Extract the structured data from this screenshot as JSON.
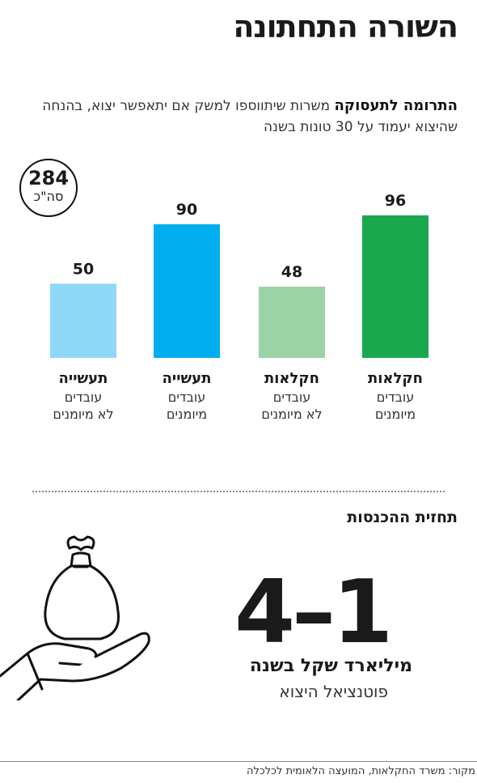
{
  "header": {
    "title": "השורה התחתונה",
    "subtitle_bold": "התרומה לתעסוקה",
    "subtitle_text": "משרות שיתווספו למשק אם יתאפשר יצוא, בהנחה שהיצוא יעמוד על 30 טונות בשנה"
  },
  "total": {
    "value": "284",
    "unit": "סה\"כ"
  },
  "chart_data": {
    "type": "bar",
    "categories": [
      "חקלאות עובדים מיומנים",
      "חקלאות עובדים לא מיומנים",
      "תעשייה עובדים מיומנים",
      "תעשייה עובדים לא מיומנים"
    ],
    "values": [
      96,
      48,
      90,
      50
    ],
    "ylim": [
      0,
      96
    ],
    "bars": [
      {
        "main": "חקלאות",
        "sub1": "עובדים",
        "sub2": "מיומנים",
        "value": 96,
        "label": "96",
        "color": "#1aa84f"
      },
      {
        "main": "חקלאות",
        "sub1": "עובדים",
        "sub2": "לא מיומנים",
        "value": 48,
        "label": "48",
        "color": "#9bd3a6"
      },
      {
        "main": "תעשייה",
        "sub1": "עובדים",
        "sub2": "מיומנים",
        "value": 90,
        "label": "90",
        "color": "#00aeef"
      },
      {
        "main": "תעשייה",
        "sub1": "עובדים",
        "sub2": "לא מיומנים",
        "value": 50,
        "label": "50",
        "color": "#8fd8f8"
      }
    ]
  },
  "income": {
    "title": "תחזית ההכנסות",
    "range": "4–1",
    "unit": "מיליארד שקל בשנה",
    "note": "פוטנציאל היצוא",
    "icon": "hand-holding-money-bag-icon"
  },
  "source": "מקור: משרד החקלאות, המועצה הלאומית לכלכלה"
}
